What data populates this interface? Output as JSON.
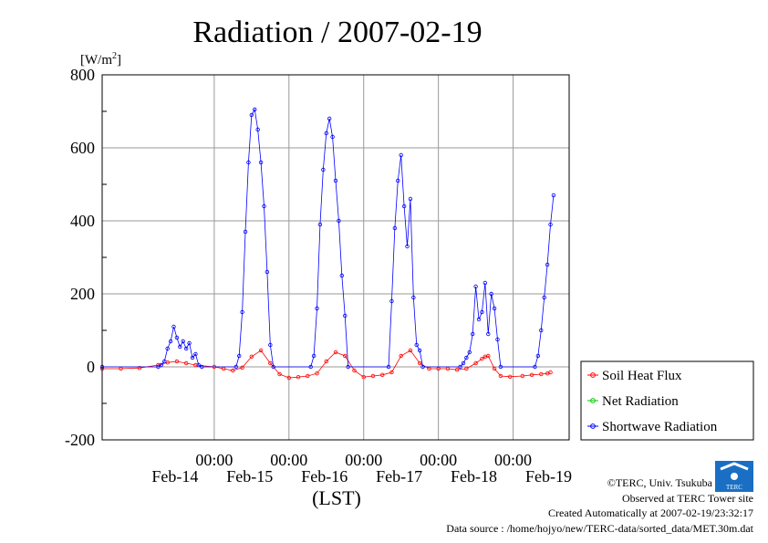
{
  "chart_data": {
    "type": "line",
    "title": "Radiation / 2007-02-19",
    "ylabel": "[W/m2]",
    "xlabel": "(LST)",
    "ylim": [
      -200,
      800
    ],
    "yticks": [
      "800",
      "600",
      "400",
      "200",
      "0",
      "-200"
    ],
    "xlim": [
      "2007-02-13 12:00",
      "2007-02-19 18:00"
    ],
    "xticks": [
      {
        "time": "2007-02-15 00:00",
        "label": "00:00",
        "date": "Feb-14"
      },
      {
        "time": "2007-02-16 00:00",
        "label": "00:00",
        "date": "Feb-15"
      },
      {
        "time": "2007-02-17 00:00",
        "label": "00:00",
        "date": "Feb-16"
      },
      {
        "time": "2007-02-18 00:00",
        "label": "00:00",
        "date": "Feb-17"
      },
      {
        "time": "2007-02-19 00:00",
        "label": "00:00",
        "date": "Feb-18"
      },
      {
        "time": "",
        "label": "",
        "date": "Feb-19"
      }
    ],
    "grid": true,
    "legend_position": "right",
    "series": [
      {
        "name": "Soil Heat Flux",
        "color": "#ff0000",
        "points": [
          [
            "2007-02-13 12:00",
            -5
          ],
          [
            "2007-02-13 18:00",
            -5
          ],
          [
            "2007-02-14 00:00",
            -3
          ],
          [
            "2007-02-14 06:00",
            5
          ],
          [
            "2007-02-14 09:00",
            12
          ],
          [
            "2007-02-14 12:00",
            15
          ],
          [
            "2007-02-14 15:00",
            10
          ],
          [
            "2007-02-14 18:00",
            5
          ],
          [
            "2007-02-15 00:00",
            0
          ],
          [
            "2007-02-15 03:00",
            -5
          ],
          [
            "2007-02-15 06:00",
            -10
          ],
          [
            "2007-02-15 09:00",
            -2
          ],
          [
            "2007-02-15 12:00",
            28
          ],
          [
            "2007-02-15 15:00",
            45
          ],
          [
            "2007-02-15 18:00",
            10
          ],
          [
            "2007-02-15 21:00",
            -20
          ],
          [
            "2007-02-16 00:00",
            -30
          ],
          [
            "2007-02-16 03:00",
            -28
          ],
          [
            "2007-02-16 06:00",
            -25
          ],
          [
            "2007-02-16 09:00",
            -18
          ],
          [
            "2007-02-16 12:00",
            15
          ],
          [
            "2007-02-16 15:00",
            40
          ],
          [
            "2007-02-16 18:00",
            30
          ],
          [
            "2007-02-16 21:00",
            -10
          ],
          [
            "2007-02-17 00:00",
            -28
          ],
          [
            "2007-02-17 03:00",
            -25
          ],
          [
            "2007-02-17 06:00",
            -22
          ],
          [
            "2007-02-17 09:00",
            -15
          ],
          [
            "2007-02-17 12:00",
            30
          ],
          [
            "2007-02-17 15:00",
            45
          ],
          [
            "2007-02-17 18:00",
            10
          ],
          [
            "2007-02-17 21:00",
            -5
          ],
          [
            "2007-02-18 00:00",
            -5
          ],
          [
            "2007-02-18 03:00",
            -5
          ],
          [
            "2007-02-18 06:00",
            -8
          ],
          [
            "2007-02-18 09:00",
            -5
          ],
          [
            "2007-02-18 12:00",
            10
          ],
          [
            "2007-02-18 14:00",
            22
          ],
          [
            "2007-02-18 15:00",
            28
          ],
          [
            "2007-02-18 16:00",
            30
          ],
          [
            "2007-02-18 18:00",
            -5
          ],
          [
            "2007-02-18 20:00",
            -25
          ],
          [
            "2007-02-18 23:00",
            -27
          ],
          [
            "2007-02-19 03:00",
            -25
          ],
          [
            "2007-02-19 06:00",
            -22
          ],
          [
            "2007-02-19 09:00",
            -20
          ],
          [
            "2007-02-19 11:00",
            -18
          ],
          [
            "2007-02-19 12:00",
            -15
          ]
        ]
      },
      {
        "name": "Net Radiation",
        "color": "#00cc00",
        "points": []
      },
      {
        "name": "Shortwave Radiation",
        "color": "#0000ff",
        "points": [
          [
            "2007-02-13 12:00",
            0
          ],
          [
            "2007-02-14 06:00",
            0
          ],
          [
            "2007-02-14 07:00",
            5
          ],
          [
            "2007-02-14 08:00",
            15
          ],
          [
            "2007-02-14 09:00",
            50
          ],
          [
            "2007-02-14 10:00",
            70
          ],
          [
            "2007-02-14 11:00",
            110
          ],
          [
            "2007-02-14 12:00",
            80
          ],
          [
            "2007-02-14 13:00",
            55
          ],
          [
            "2007-02-14 14:00",
            70
          ],
          [
            "2007-02-14 15:00",
            50
          ],
          [
            "2007-02-14 16:00",
            65
          ],
          [
            "2007-02-14 17:00",
            25
          ],
          [
            "2007-02-14 18:00",
            35
          ],
          [
            "2007-02-14 19:00",
            5
          ],
          [
            "2007-02-14 20:00",
            0
          ],
          [
            "2007-02-15 07:00",
            0
          ],
          [
            "2007-02-15 08:00",
            30
          ],
          [
            "2007-02-15 09:00",
            150
          ],
          [
            "2007-02-15 10:00",
            370
          ],
          [
            "2007-02-15 11:00",
            560
          ],
          [
            "2007-02-15 12:00",
            690
          ],
          [
            "2007-02-15 13:00",
            705
          ],
          [
            "2007-02-15 14:00",
            650
          ],
          [
            "2007-02-15 15:00",
            560
          ],
          [
            "2007-02-15 16:00",
            440
          ],
          [
            "2007-02-15 17:00",
            260
          ],
          [
            "2007-02-15 18:00",
            60
          ],
          [
            "2007-02-15 19:00",
            0
          ],
          [
            "2007-02-16 07:00",
            0
          ],
          [
            "2007-02-16 08:00",
            30
          ],
          [
            "2007-02-16 09:00",
            160
          ],
          [
            "2007-02-16 10:00",
            390
          ],
          [
            "2007-02-16 11:00",
            540
          ],
          [
            "2007-02-16 12:00",
            640
          ],
          [
            "2007-02-16 13:00",
            680
          ],
          [
            "2007-02-16 14:00",
            630
          ],
          [
            "2007-02-16 15:00",
            510
          ],
          [
            "2007-02-16 16:00",
            400
          ],
          [
            "2007-02-16 17:00",
            250
          ],
          [
            "2007-02-16 18:00",
            140
          ],
          [
            "2007-02-16 19:00",
            0
          ],
          [
            "2007-02-17 08:00",
            0
          ],
          [
            "2007-02-17 09:00",
            180
          ],
          [
            "2007-02-17 10:00",
            380
          ],
          [
            "2007-02-17 11:00",
            510
          ],
          [
            "2007-02-17 12:00",
            580
          ],
          [
            "2007-02-17 13:00",
            440
          ],
          [
            "2007-02-17 14:00",
            330
          ],
          [
            "2007-02-17 15:00",
            460
          ],
          [
            "2007-02-17 16:00",
            190
          ],
          [
            "2007-02-17 17:00",
            60
          ],
          [
            "2007-02-17 18:00",
            45
          ],
          [
            "2007-02-17 19:00",
            0
          ],
          [
            "2007-02-18 07:00",
            0
          ],
          [
            "2007-02-18 08:00",
            10
          ],
          [
            "2007-02-18 09:00",
            25
          ],
          [
            "2007-02-18 10:00",
            40
          ],
          [
            "2007-02-18 11:00",
            90
          ],
          [
            "2007-02-18 12:00",
            220
          ],
          [
            "2007-02-18 13:00",
            130
          ],
          [
            "2007-02-18 14:00",
            150
          ],
          [
            "2007-02-18 15:00",
            230
          ],
          [
            "2007-02-18 16:00",
            90
          ],
          [
            "2007-02-18 17:00",
            200
          ],
          [
            "2007-02-18 18:00",
            160
          ],
          [
            "2007-02-18 19:00",
            75
          ],
          [
            "2007-02-18 20:00",
            0
          ],
          [
            "2007-02-19 07:00",
            0
          ],
          [
            "2007-02-19 08:00",
            30
          ],
          [
            "2007-02-19 09:00",
            100
          ],
          [
            "2007-02-19 10:00",
            190
          ],
          [
            "2007-02-19 11:00",
            280
          ],
          [
            "2007-02-19 12:00",
            390
          ],
          [
            "2007-02-19 13:00",
            470
          ]
        ]
      }
    ]
  },
  "credits": {
    "copyright": "©TERC, Univ. Tsukuba",
    "observed": "Observed at TERC Tower site",
    "created": "Created Automatically at 2007-02-19/23:32:17",
    "source": "Data source : /home/hojyo/new/TERC-data/sorted_data/MET.30m.dat",
    "logo_text": "TERC"
  }
}
